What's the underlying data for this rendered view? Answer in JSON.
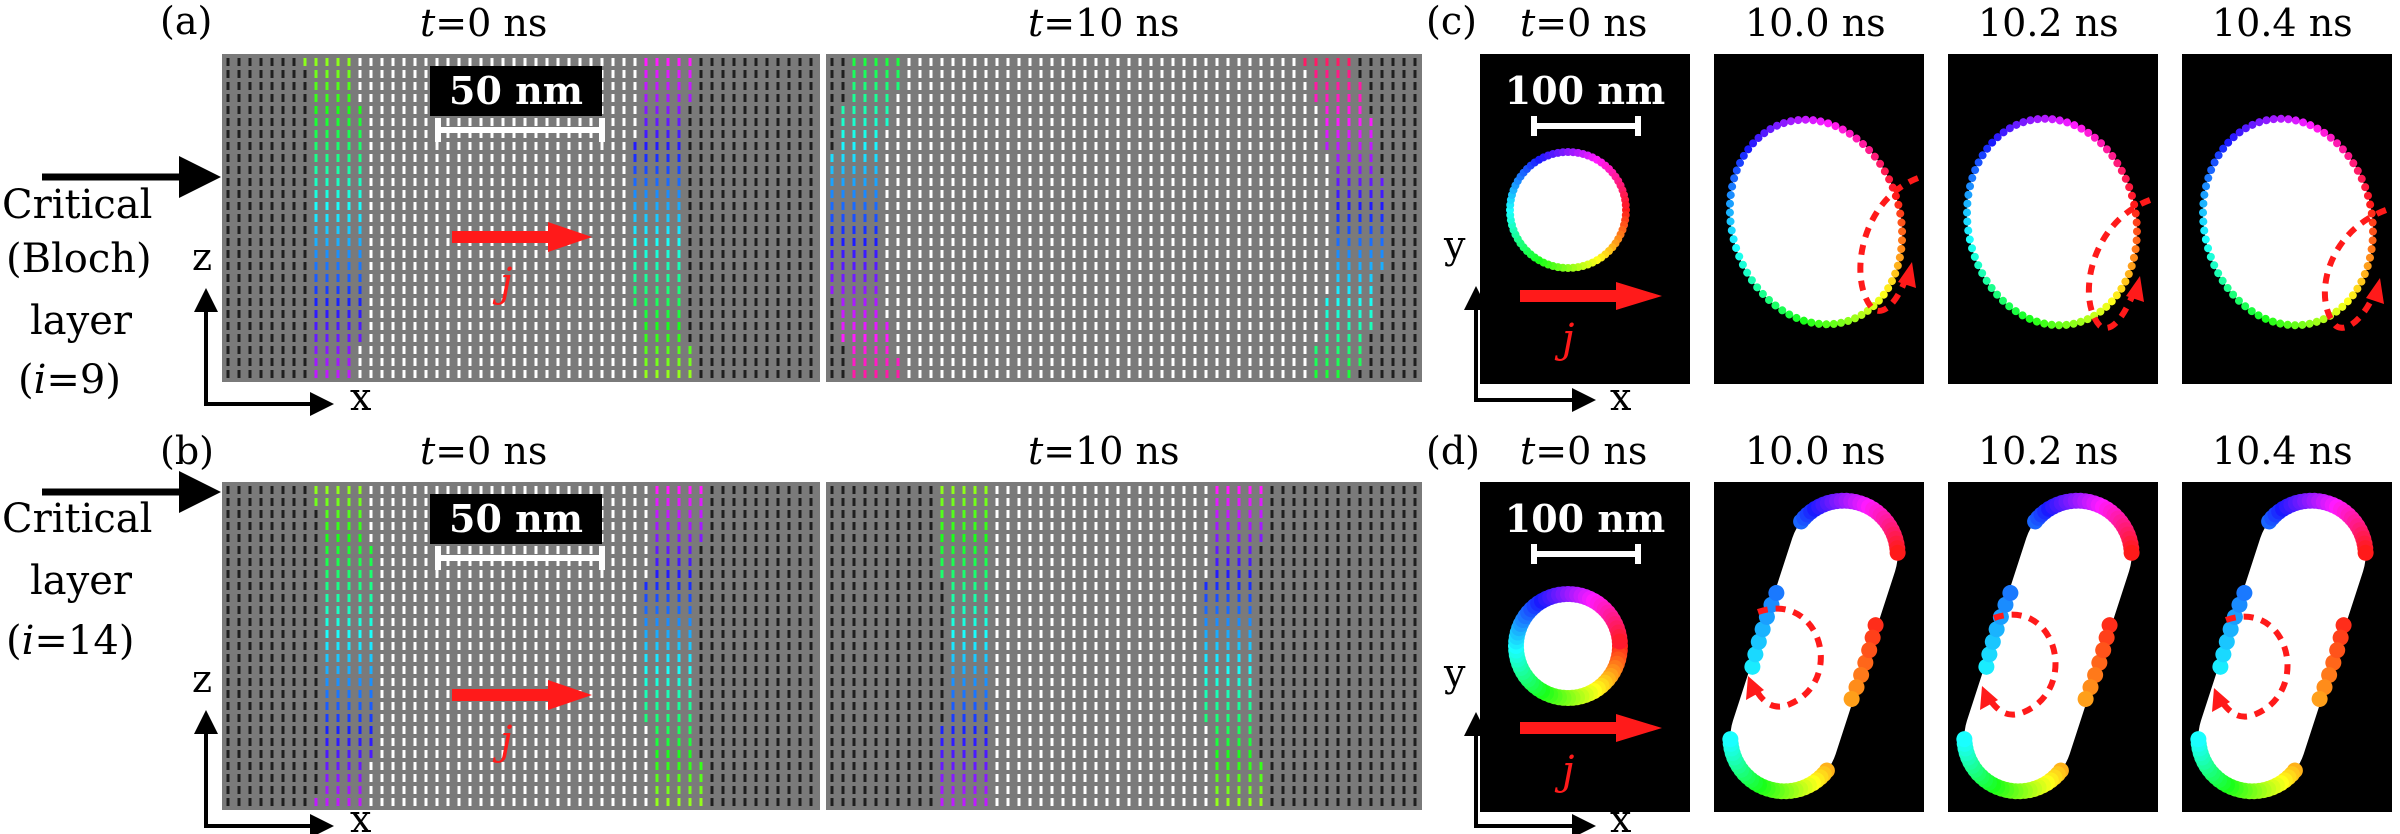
{
  "panels": {
    "a": {
      "label": "(a)",
      "time_left": "=0 ns",
      "time_right": "=10 ns"
    },
    "b": {
      "label": "(b)",
      "time_left": "=0 ns",
      "time_right": "=10 ns"
    },
    "c": {
      "label": "(c)",
      "times": [
        "=0 ns",
        "10.0 ns",
        "10.2 ns",
        "10.4 ns"
      ]
    },
    "d": {
      "label": "(d)",
      "times": [
        "=0 ns",
        "10.0 ns",
        "10.2 ns",
        "10.4 ns"
      ]
    }
  },
  "time_symbol": "t",
  "side_labels": {
    "top": [
      "Critical",
      "(Bloch)",
      "layer",
      "(",
      "i",
      "=9)"
    ],
    "bottom": [
      "Critical",
      "layer",
      "(",
      "i",
      "=14)"
    ]
  },
  "scale_bars": {
    "xz": "50 nm",
    "xy": "100 nm"
  },
  "current_symbol": "j",
  "axes": {
    "horizontal": "x",
    "vertical_xz": "z",
    "vertical_xy": "y"
  },
  "colors": {
    "panel_bg_xz": "#7a7a7a",
    "panel_bg_xy": "#000000",
    "current_arrow": "#ff1a1a"
  }
}
